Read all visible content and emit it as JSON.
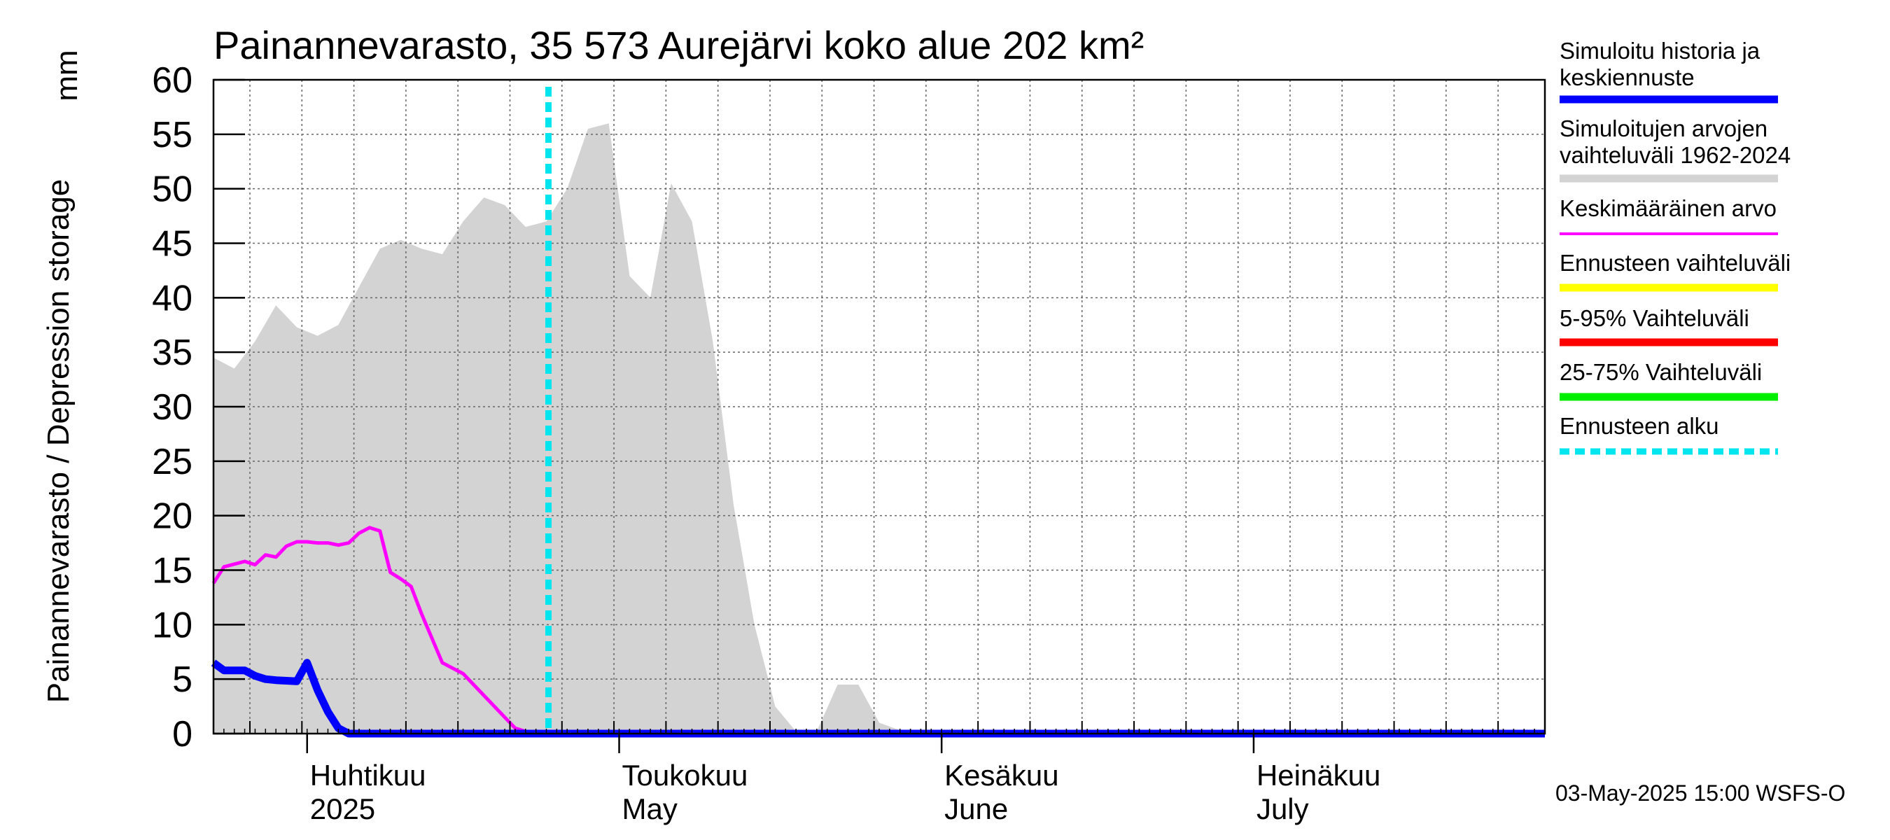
{
  "chart_data": {
    "type": "area",
    "title": "Painannevarasto, 35 573 Aurejärvi koko alue 202 km²",
    "ylabel": "Painannevarasto / Depression storage",
    "yunit": "mm",
    "ylim": [
      0,
      60
    ],
    "yticks": [
      0,
      5,
      10,
      15,
      20,
      25,
      30,
      35,
      40,
      45,
      50,
      55,
      60
    ],
    "xlim": [
      0,
      128
    ],
    "x_unit": "days since 2025-03-23",
    "grid": true,
    "x_grid_days": [
      3.5,
      8.5,
      13.5,
      18.5,
      23.5,
      28.5,
      33.5,
      38.5,
      43.5,
      48.5,
      53.5,
      58.5,
      63.5,
      68.5,
      73.5,
      78.5,
      83.5,
      88.5,
      93.5,
      98.5,
      103.5,
      108.5,
      113.5,
      118.5,
      123.5
    ],
    "month_boundaries": [
      9,
      39,
      70,
      100
    ],
    "month_labels": [
      {
        "x": 9,
        "fi": "Huhtikuu",
        "en": "2025"
      },
      {
        "x": 39,
        "fi": "Toukokuu",
        "en": "May"
      },
      {
        "x": 70,
        "fi": "Kesäkuu",
        "en": "June"
      },
      {
        "x": 100,
        "fi": "Heinäkuu",
        "en": "July"
      }
    ],
    "series": [
      {
        "name": "Simuloitujen arvojen vaihteluväli 1962-2024",
        "kind": "band",
        "color": "#d3d3d3",
        "x": [
          0,
          2,
          4,
          6,
          8,
          10,
          12,
          14,
          16,
          18,
          20,
          22,
          24,
          26,
          28,
          30,
          32,
          34,
          36,
          38,
          40,
          42,
          44,
          46,
          48,
          50,
          52,
          54,
          56,
          58,
          60,
          62,
          64,
          66,
          68,
          70,
          72,
          74,
          76,
          78,
          80,
          82,
          84,
          86,
          88,
          90,
          92,
          94,
          96,
          98,
          100,
          102,
          104,
          106,
          108,
          110,
          112,
          114,
          116,
          118,
          120,
          122,
          124,
          126,
          128
        ],
        "high": [
          34.5,
          33.5,
          36,
          39.3,
          37.3,
          36.5,
          37.5,
          41,
          44.5,
          45.3,
          44.5,
          44,
          47,
          49.2,
          48.5,
          46.5,
          47,
          50,
          55.5,
          56,
          42,
          40,
          50.5,
          47,
          36,
          21,
          10,
          2.5,
          0.2,
          0.2,
          4.5,
          4.5,
          1,
          0.3,
          0.3,
          0.3,
          0.3,
          0.3,
          0.3,
          0.3,
          0.3,
          0.3,
          0.3,
          0.3,
          0.3,
          0.3,
          0.3,
          0.3,
          0.3,
          0.3,
          0.3,
          0.3,
          0.3,
          0.3,
          0.3,
          0.3,
          0.3,
          0.3,
          0.3,
          0.3,
          0.3,
          0.3,
          0.3,
          0.3,
          0.3
        ],
        "low": [
          0,
          0,
          0,
          0,
          0,
          0,
          0,
          0,
          0,
          0,
          0,
          0,
          0,
          0,
          0,
          0,
          0,
          0,
          0,
          0,
          0,
          0,
          0,
          0,
          0,
          0,
          0,
          0,
          0,
          0,
          0,
          0,
          0,
          0,
          0,
          0,
          0,
          0,
          0,
          0,
          0,
          0,
          0,
          0,
          0,
          0,
          0,
          0,
          0,
          0,
          0,
          0,
          0,
          0,
          0,
          0,
          0,
          0,
          0,
          0,
          0,
          0,
          0,
          0,
          0
        ]
      },
      {
        "name": "Keskimääräinen arvo",
        "kind": "line",
        "color": "#ff00ff",
        "x": [
          0,
          1,
          3,
          4,
          5,
          6,
          7,
          8,
          9,
          10,
          11,
          12,
          13,
          14,
          15,
          16,
          17,
          18,
          19,
          20,
          22,
          24,
          26,
          28,
          29,
          30,
          31,
          32,
          33,
          34,
          35,
          128
        ],
        "y": [
          13.8,
          15.3,
          15.8,
          15.5,
          16.4,
          16.2,
          17.2,
          17.6,
          17.6,
          17.5,
          17.5,
          17.3,
          17.5,
          18.4,
          18.9,
          18.6,
          14.8,
          14.2,
          13.5,
          11,
          6.5,
          5.5,
          3.5,
          1.5,
          0.5,
          0.2,
          0.1,
          0.1,
          0.1,
          0.1,
          0.1,
          0.1
        ],
        "width": 5
      },
      {
        "name": "Simuloitu historia ja keskiennuste",
        "kind": "line",
        "color": "#0000ff",
        "x": [
          0,
          1,
          3,
          4,
          5,
          6,
          8,
          9,
          10,
          11,
          12,
          13,
          14,
          15,
          128
        ],
        "y": [
          6.5,
          5.8,
          5.8,
          5.3,
          5.0,
          4.9,
          4.8,
          6.5,
          4.0,
          2.0,
          0.5,
          0.0,
          0.0,
          0.0,
          0.0
        ],
        "width": 11
      }
    ],
    "forecast_start": {
      "name": "Ennusteen alku",
      "x": 32.2,
      "color": "#00e5ee"
    },
    "legend": [
      {
        "label": "Simuloitu historia ja keskiennuste",
        "color": "#0000ff",
        "style": "solid",
        "width": 11
      },
      {
        "label": "Simuloitujen arvojen vaihteluväli 1962-2024",
        "color": "#d3d3d3",
        "style": "solid",
        "width": 11
      },
      {
        "label": "Keskimääräinen arvo",
        "color": "#ff00ff",
        "style": "solid",
        "width": 4
      },
      {
        "label": "Ennusteen vaihteluväli",
        "color": "#ffff00",
        "style": "solid",
        "width": 11
      },
      {
        "label": "5-95% Vaihteluväli",
        "color": "#ff0000",
        "style": "solid",
        "width": 11
      },
      {
        "label": "25-75% Vaihteluväli",
        "color": "#00ee00",
        "style": "solid",
        "width": 11
      },
      {
        "label": "Ennusteen alku",
        "color": "#00e5ee",
        "style": "dashed",
        "width": 9
      }
    ],
    "legend_position": "right",
    "footer": "03-May-2025 15:00 WSFS-O"
  }
}
